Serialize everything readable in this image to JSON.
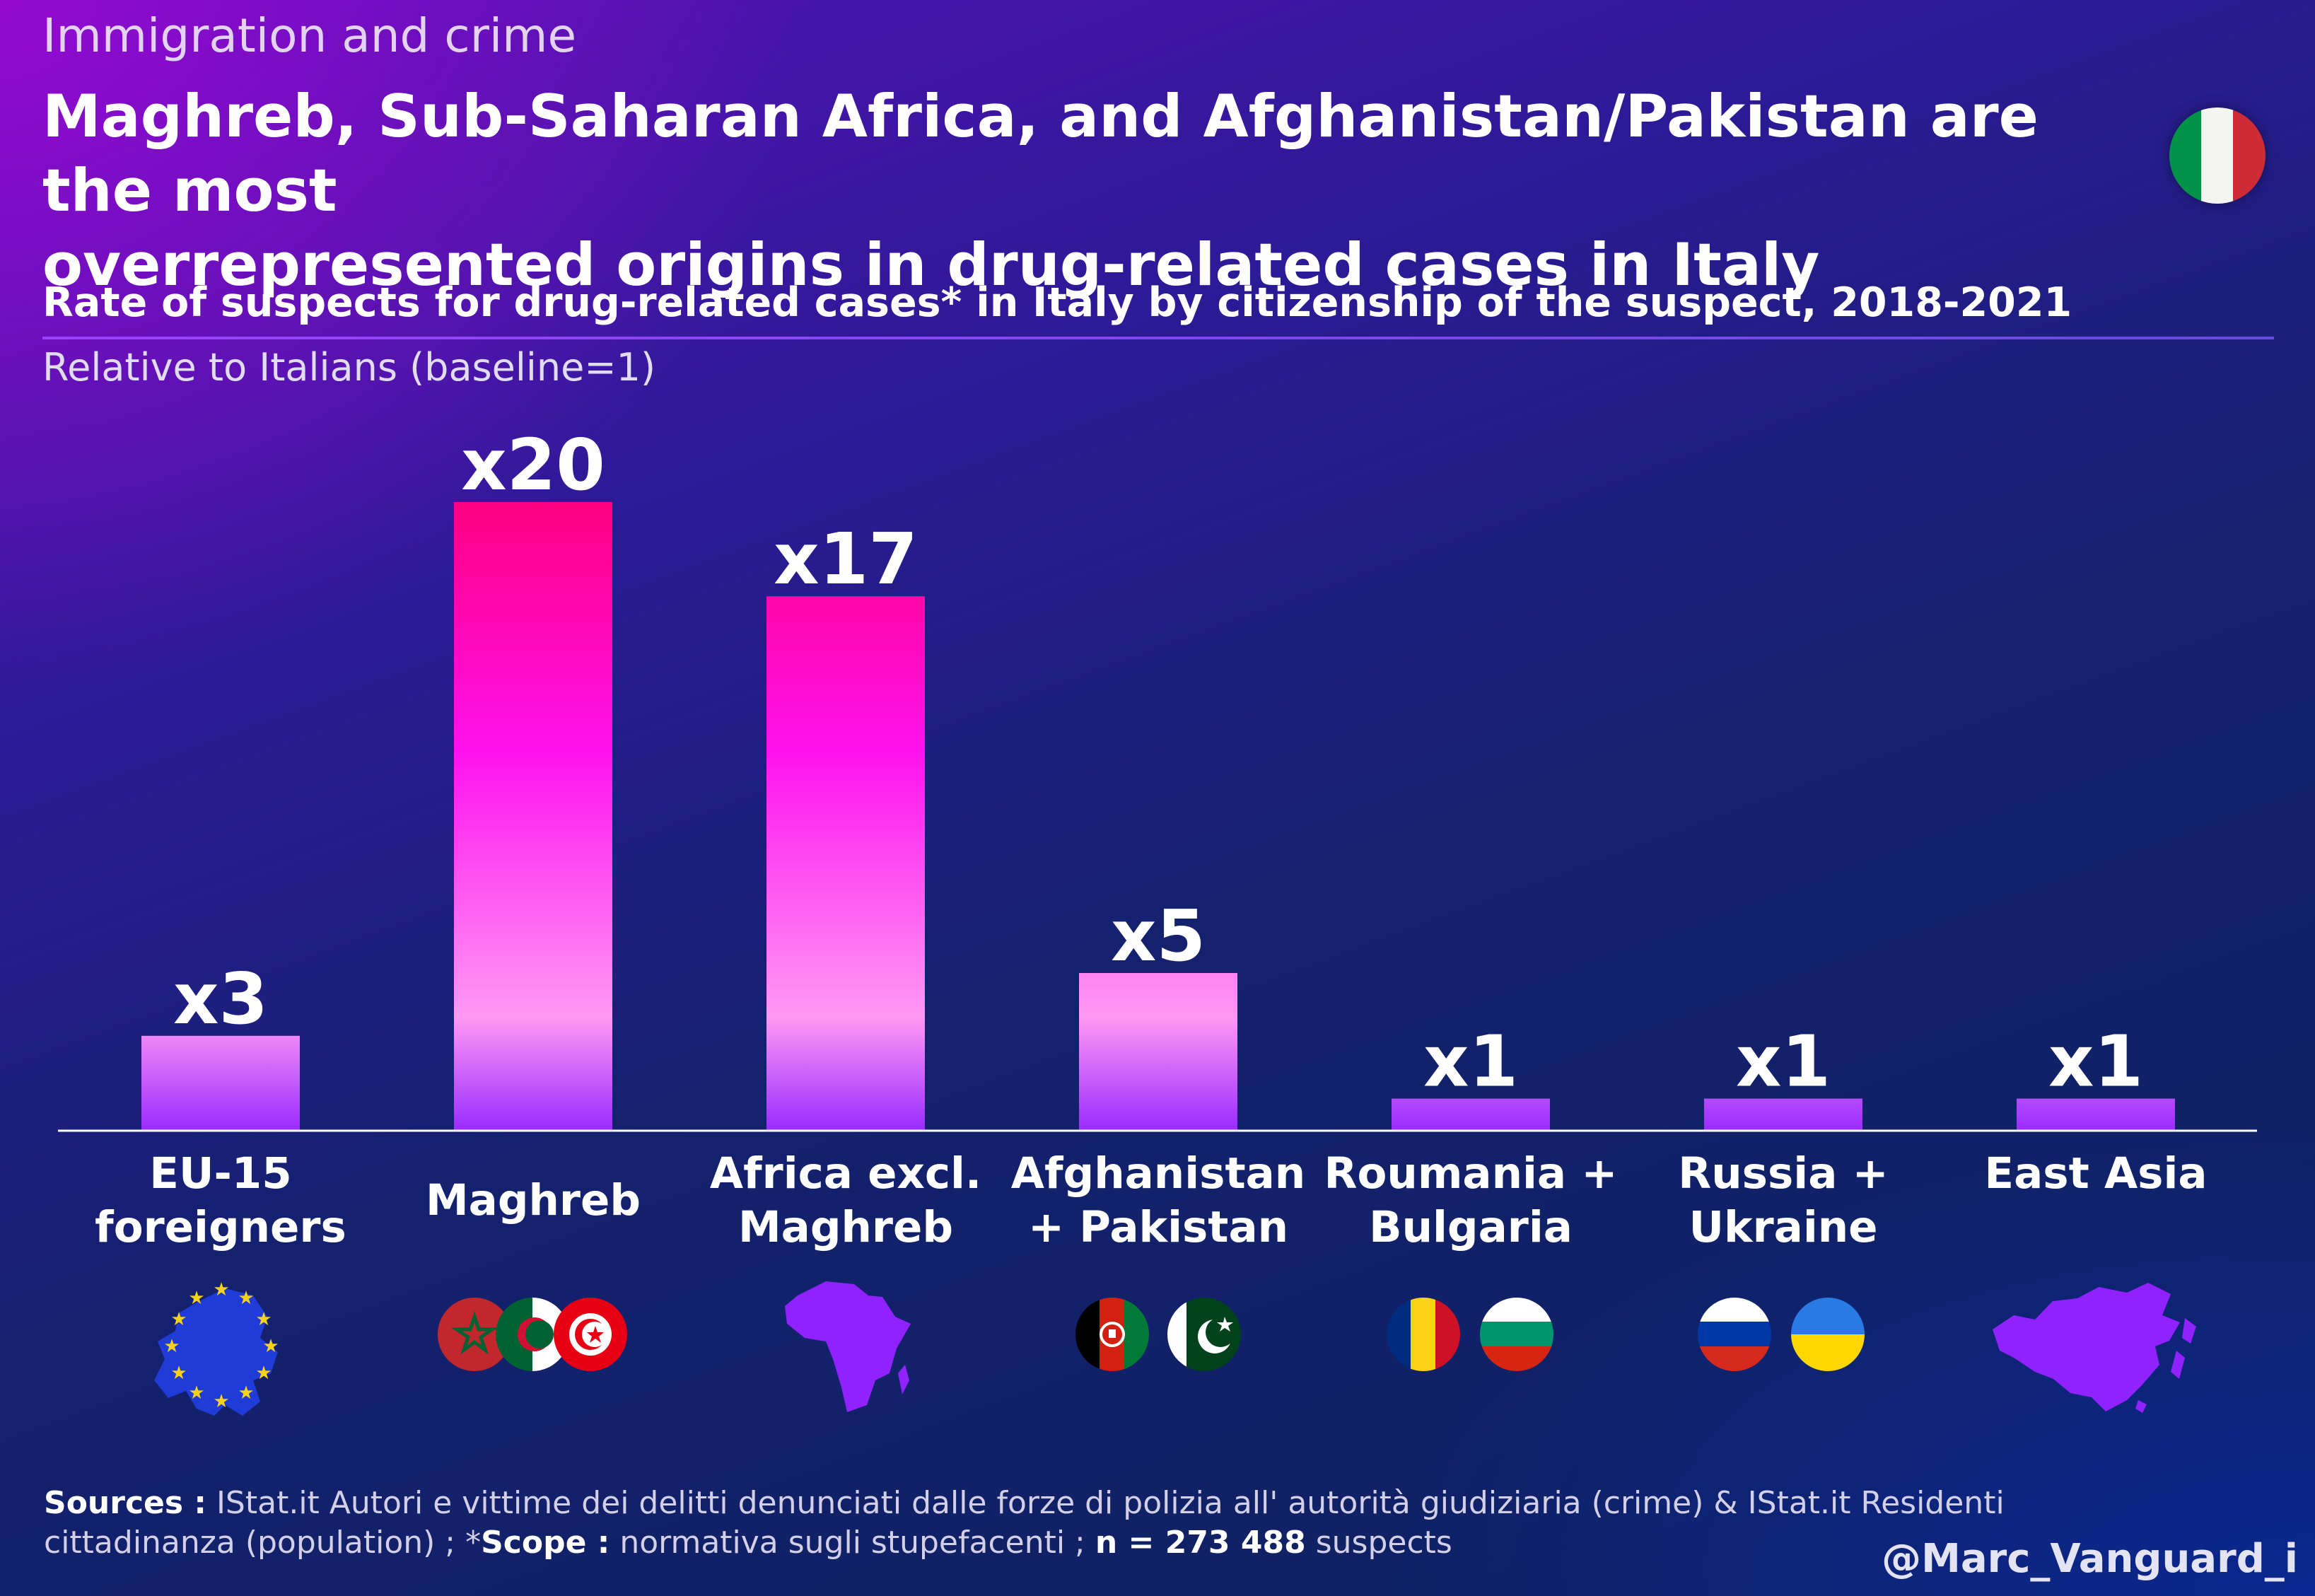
{
  "header": {
    "kicker": "Immigration and crime",
    "title_line1": "Maghreb, Sub-Saharan Africa, and Afghanistan/Pakistan are the most",
    "title_line2": "overrepresented origins in drug-related cases in Italy"
  },
  "chart_data": {
    "type": "bar",
    "title": "Rate of suspects for drug-related cases* in Italy by citizenship of the suspect, 2018-2021",
    "ylabel": "Relative to Italians (baseline=1)",
    "xlabel": "",
    "categories": [
      "EU-15\nforeigners",
      "Maghreb",
      "Africa excl.\nMaghreb",
      "Afghanistan\n+ Pakistan",
      "Roumania +\nBulgaria",
      "Russia +\nUkraine",
      "East Asia"
    ],
    "values": [
      3,
      20,
      17,
      5,
      1,
      1,
      1
    ],
    "data_labels": [
      "x3",
      "x20",
      "x17",
      "x5",
      "x1",
      "x1",
      "x1"
    ],
    "ylim": [
      0,
      20
    ],
    "grid": false,
    "legend": "none"
  },
  "footer": {
    "sources_label": "Sources :",
    "sources_text": " IStat.it Autori e vittime dei delitti denunciati dalle forze di polizia all' autorità giudiziaria (crime) & IStat.it Residenti cittadinanza (population) ; *",
    "scope_label": "Scope :",
    "scope_text": " normativa sugli stupefacenti ; ",
    "n_label": "n = 273 488",
    "n_suffix": " suspects",
    "handle": "@Marc_Vanguard_i"
  },
  "colors": {
    "bar_low": "#9a2cff",
    "bar_mid": "#ff99f4",
    "bar_high": "#ff00f0",
    "bar_top": "#ff0080",
    "icon_purple": "#8f22ff",
    "axis": "#ffffff"
  },
  "icons": [
    "eu-map-icon",
    "morocco-flag-icon",
    "algeria-flag-icon",
    "tunisia-flag-icon",
    "africa-map-icon",
    "afghanistan-flag-icon",
    "pakistan-flag-icon",
    "romania-flag-icon",
    "bulgaria-flag-icon",
    "russia-flag-icon",
    "ukraine-flag-icon",
    "east-asia-map-icon",
    "italy-flag-icon"
  ]
}
